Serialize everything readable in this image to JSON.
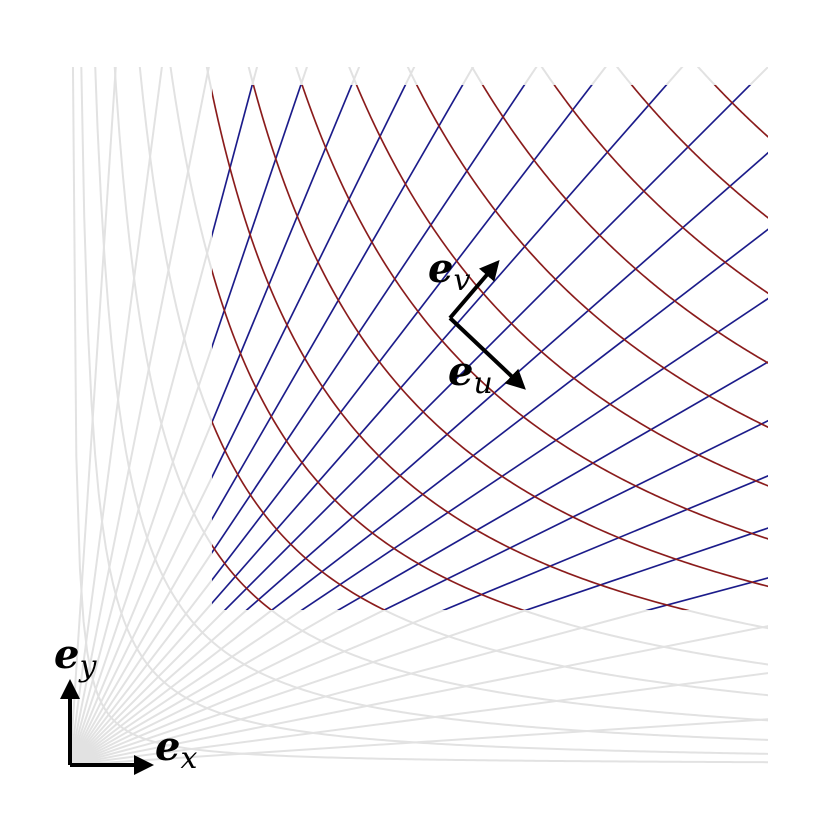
{
  "labels": [
    {
      "base": "e",
      "sub": "y"
    },
    {
      "base": "e",
      "sub": "x"
    },
    {
      "base": "e",
      "sub": "v"
    },
    {
      "base": "e",
      "sub": "u"
    }
  ]
}
